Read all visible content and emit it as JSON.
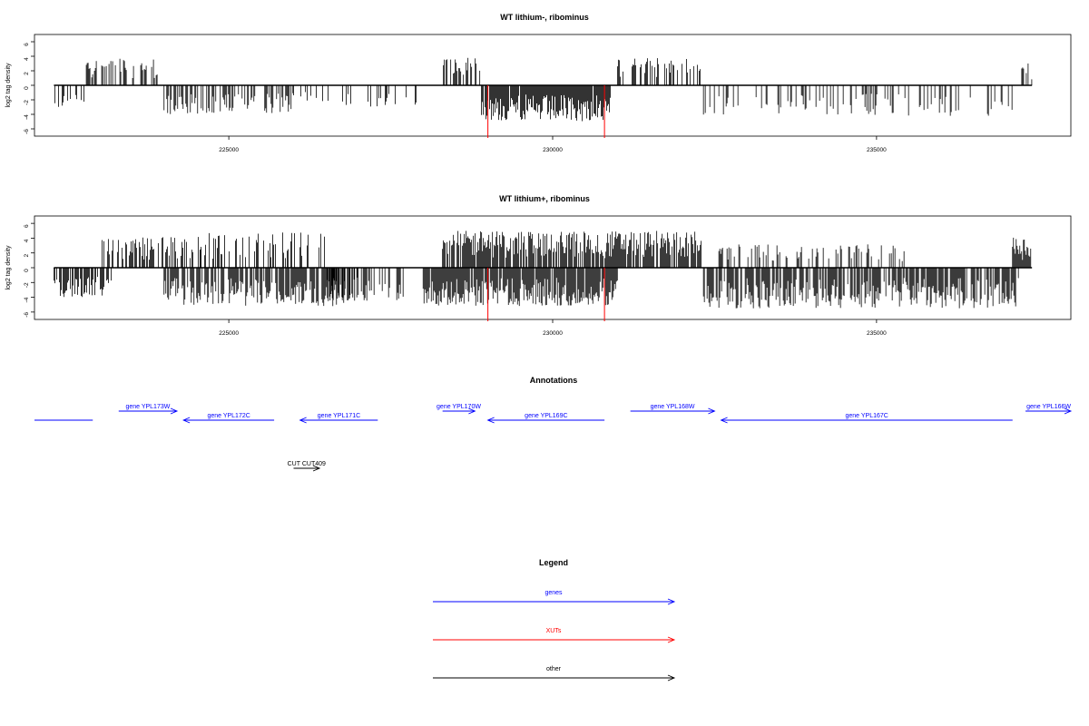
{
  "chart_data": [
    {
      "type": "bar",
      "title": "WT lithium-, ribominus",
      "ylabel": "log2 tag density",
      "xlim": [
        222000,
        238000
      ],
      "ylim": [
        -7,
        7
      ],
      "yticks": [
        6,
        4,
        2,
        0,
        -2,
        -4,
        -6
      ],
      "xticks": [
        225000,
        230000,
        235000
      ],
      "xtick_labels": [
        "225000",
        "230000",
        "235000"
      ],
      "data_range": [
        222300,
        237400
      ],
      "series": [
        {
          "values_note": "sparse signed log2 tag density per position",
          "segments": [
            {
              "from": 222300,
              "to": 222800,
              "sign": -1,
              "max": 3.2,
              "density": 0.35
            },
            {
              "from": 222800,
              "to": 223900,
              "sign": 1,
              "max": 3.8,
              "density": 0.45
            },
            {
              "from": 224000,
              "to": 226000,
              "sign": -1,
              "max": 4.0,
              "density": 0.55
            },
            {
              "from": 226000,
              "to": 227900,
              "sign": -1,
              "max": 3.0,
              "density": 0.15
            },
            {
              "from": 228300,
              "to": 228900,
              "sign": 1,
              "max": 3.8,
              "density": 0.6
            },
            {
              "from": 228900,
              "to": 230900,
              "sign": -1,
              "max": 5.0,
              "density": 0.95
            },
            {
              "from": 231000,
              "to": 232300,
              "sign": 1,
              "max": 3.8,
              "density": 0.45
            },
            {
              "from": 232300,
              "to": 237200,
              "sign": -1,
              "max": 4.2,
              "density": 0.22
            },
            {
              "from": 237200,
              "to": 237400,
              "sign": 1,
              "max": 3.2,
              "density": 0.5
            }
          ],
          "highlight_positions": [
            229000,
            230800
          ],
          "highlight_values": [
            -7,
            -7
          ],
          "highlight_color": "#ff0000"
        }
      ]
    },
    {
      "type": "bar",
      "title": "WT lithium+, ribominus",
      "ylabel": "log2 tag density",
      "xlim": [
        222000,
        238000
      ],
      "ylim": [
        -7,
        7
      ],
      "yticks": [
        6,
        4,
        2,
        0,
        -2,
        -4,
        -6
      ],
      "xticks": [
        225000,
        230000,
        235000
      ],
      "xtick_labels": [
        "225000",
        "230000",
        "235000"
      ],
      "data_range": [
        222300,
        237400
      ],
      "series": [
        {
          "values_note": "dense signed log2 tag density per position",
          "segments": [
            {
              "from": 222300,
              "to": 223200,
              "sign": -1,
              "max": 4.0,
              "density": 0.5
            },
            {
              "from": 223000,
              "to": 224600,
              "sign": 1,
              "max": 4.2,
              "density": 0.55
            },
            {
              "from": 224000,
              "to": 227000,
              "sign": -1,
              "max": 5.2,
              "density": 0.75
            },
            {
              "from": 224500,
              "to": 226500,
              "sign": 1,
              "max": 4.8,
              "density": 0.35
            },
            {
              "from": 226500,
              "to": 227800,
              "sign": -1,
              "max": 4.5,
              "density": 0.4
            },
            {
              "from": 228000,
              "to": 231000,
              "sign": -1,
              "max": 5.2,
              "density": 0.95
            },
            {
              "from": 228300,
              "to": 232300,
              "sign": 1,
              "max": 5.0,
              "density": 0.8
            },
            {
              "from": 232300,
              "to": 237200,
              "sign": -1,
              "max": 5.5,
              "density": 0.75
            },
            {
              "from": 232300,
              "to": 235500,
              "sign": 1,
              "max": 3.2,
              "density": 0.25
            },
            {
              "from": 237100,
              "to": 237400,
              "sign": 1,
              "max": 4.2,
              "density": 0.9
            }
          ],
          "highlight_positions": [
            229000,
            230800
          ],
          "highlight_values": [
            -7,
            -7
          ],
          "highlight_color": "#ff0000"
        }
      ]
    }
  ],
  "annotations": {
    "title": "Annotations",
    "xlim": [
      222000,
      238000
    ],
    "features": [
      {
        "label": "",
        "start": 222000,
        "end": 222900,
        "strand": "-",
        "row": 2,
        "color": "#0000ff"
      },
      {
        "label": "gene YPL173W",
        "start": 223300,
        "end": 224200,
        "strand": "+",
        "row": 1,
        "color": "#0000ff"
      },
      {
        "label": "gene YPL172C",
        "start": 224300,
        "end": 225700,
        "strand": "-",
        "row": 2,
        "color": "#0000ff"
      },
      {
        "label": "gene YPL171C",
        "start": 226100,
        "end": 227300,
        "strand": "-",
        "row": 2,
        "color": "#0000ff"
      },
      {
        "label": "gene YPL170W",
        "start": 228300,
        "end": 228800,
        "strand": "+",
        "row": 1,
        "color": "#0000ff"
      },
      {
        "label": "gene YPL169C",
        "start": 229000,
        "end": 230800,
        "strand": "-",
        "row": 2,
        "color": "#0000ff"
      },
      {
        "label": "gene YPL168W",
        "start": 231200,
        "end": 232500,
        "strand": "+",
        "row": 1,
        "color": "#0000ff"
      },
      {
        "label": "gene YPL167C",
        "start": 232600,
        "end": 237100,
        "strand": "-",
        "row": 2,
        "color": "#0000ff"
      },
      {
        "label": "gene YPL166W",
        "start": 237300,
        "end": 238000,
        "strand": "+",
        "row": 1,
        "color": "#0000ff"
      },
      {
        "label": "CUT CUT409",
        "start": 226000,
        "end": 226400,
        "strand": "+",
        "row": 3,
        "color": "#000000"
      }
    ]
  },
  "legend": {
    "title": "Legend",
    "items": [
      {
        "label": "genes",
        "color": "#0000ff"
      },
      {
        "label": "XUTs",
        "color": "#ff0000"
      },
      {
        "label": "other",
        "color": "#000000"
      }
    ]
  }
}
